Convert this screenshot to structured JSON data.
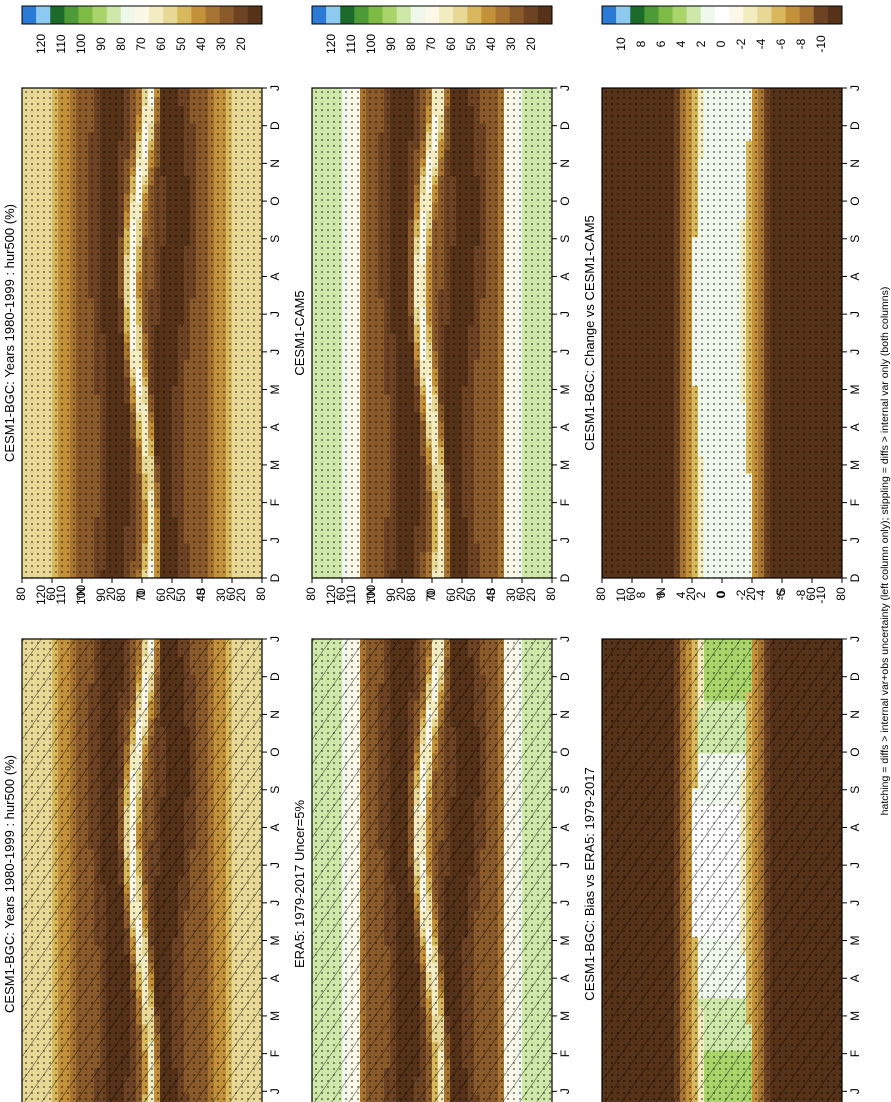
{
  "colors": {
    "humidity_levels": [
      "#2b7bd6",
      "#8ec9f0",
      "#1d6b2a",
      "#4d9a36",
      "#7ebb45",
      "#a8d46a",
      "#cde8a8",
      "#f0f8ec",
      "#fbf8e8",
      "#f3ecc0",
      "#e8d896",
      "#d8b85c",
      "#c2913a",
      "#a87432",
      "#8a5a2a",
      "#6d4324",
      "#553218"
    ],
    "change_levels": [
      "#2b7bd6",
      "#8ec9f0",
      "#1d6b2a",
      "#4d9a36",
      "#7ebb45",
      "#a8d46a",
      "#cde8a8",
      "#f0f8ec",
      "#ffffff",
      "#fbf8e8",
      "#f3ecc0",
      "#e8d896",
      "#d8b85c",
      "#c2913a",
      "#a87432",
      "#6d4324",
      "#553218"
    ]
  },
  "footer_note": "hatching = diffs > internal var+obs uncertainty (left column only); stippling = diffs > internal var only (both columns)",
  "panels": [
    {
      "id": "p1",
      "title": "CESM1-BGC: Years 1980-1999 : hur500 (%)",
      "kind": "humidity",
      "hatch": true
    },
    {
      "id": "p2",
      "title": "CESM1-BGC: Years 1980-1999 : hur500 (%)",
      "kind": "humidity",
      "hatch": false
    },
    {
      "id": "p3",
      "title": "ERA5: 1979-2017 Uncer=5%",
      "kind": "humidity_obs",
      "hatch": true
    },
    {
      "id": "p4",
      "title": "CESM1-CAM5",
      "kind": "humidity_obs",
      "hatch": false
    },
    {
      "id": "p5",
      "title": "CESM1-BGC: Bias vs ERA5: 1979-2017",
      "kind": "change",
      "hatch": true
    },
    {
      "id": "p6",
      "title": "CESM1-BGC: Change vs CESM1-CAM5",
      "kind": "change",
      "hatch": false
    }
  ],
  "chart_data": [
    {
      "type": "heatmap",
      "title": "CESM1-BGC: Years 1980-1999 : hur500 (%)",
      "x": [
        "D",
        "J",
        "F",
        "M",
        "A",
        "M",
        "J",
        "J",
        "A",
        "S",
        "O",
        "N",
        "D",
        "J"
      ],
      "y_ticks": [
        "80",
        "60",
        "°N",
        "20",
        "0",
        "20",
        "°S",
        "60",
        "80"
      ],
      "colorbar_labels": [
        "120",
        "110",
        "100",
        "90",
        "80",
        "70",
        "60",
        "50",
        "40",
        "30",
        "20"
      ],
      "ylim": [
        -90,
        90
      ]
    },
    {
      "type": "heatmap",
      "title": "CESM1-BGC: Years 1980-1999 : hur500 (%)",
      "x": [
        "D",
        "J",
        "F",
        "M",
        "A",
        "M",
        "J",
        "J",
        "A",
        "S",
        "O",
        "N",
        "D",
        "J"
      ],
      "y_ticks": [
        "80",
        "60",
        "°N",
        "20",
        "0",
        "20",
        "°S",
        "60",
        "80"
      ],
      "colorbar_labels": [
        "120",
        "110",
        "100",
        "90",
        "80",
        "70",
        "60",
        "50",
        "40",
        "30",
        "20"
      ],
      "ylim": [
        -90,
        90
      ]
    },
    {
      "type": "heatmap",
      "title": "ERA5: 1979-2017 Uncer=5%",
      "x": [
        "D",
        "J",
        "F",
        "M",
        "A",
        "M",
        "J",
        "J",
        "A",
        "S",
        "O",
        "N",
        "D",
        "J"
      ],
      "y_ticks": [
        "80",
        "60",
        "°N",
        "20",
        "0",
        "20",
        "°S",
        "60",
        "80"
      ],
      "colorbar_labels": [
        "120",
        "110",
        "100",
        "90",
        "80",
        "70",
        "60",
        "50",
        "40",
        "30",
        "20"
      ],
      "ylim": [
        -90,
        90
      ]
    },
    {
      "type": "heatmap",
      "title": "CESM1-CAM5",
      "x": [
        "D",
        "J",
        "F",
        "M",
        "A",
        "M",
        "J",
        "J",
        "A",
        "S",
        "O",
        "N",
        "D",
        "J"
      ],
      "y_ticks": [
        "80",
        "60",
        "°N",
        "20",
        "0",
        "20",
        "°S",
        "60",
        "80"
      ],
      "colorbar_labels": [
        "120",
        "110",
        "100",
        "90",
        "80",
        "70",
        "60",
        "50",
        "40",
        "30",
        "20"
      ],
      "ylim": [
        -90,
        90
      ]
    },
    {
      "type": "heatmap",
      "title": "CESM1-BGC: Bias vs ERA5: 1979-2017",
      "x": [
        "D",
        "J",
        "F",
        "M",
        "A",
        "M",
        "J",
        "J",
        "A",
        "S",
        "O",
        "N",
        "D",
        "J"
      ],
      "y_ticks": [
        "80",
        "60",
        "°N",
        "20",
        "0",
        "20",
        "°S",
        "60",
        "80"
      ],
      "colorbar_labels": [
        "10",
        "8",
        "6",
        "4",
        "2",
        "0",
        "-2",
        "-4",
        "-6",
        "-8",
        "-10"
      ],
      "ylim": [
        -90,
        90
      ]
    },
    {
      "type": "heatmap",
      "title": "CESM1-BGC: Change vs CESM1-CAM5",
      "x": [
        "D",
        "J",
        "F",
        "M",
        "A",
        "M",
        "J",
        "J",
        "A",
        "S",
        "O",
        "N",
        "D",
        "J"
      ],
      "y_ticks": [
        "80",
        "60",
        "°N",
        "20",
        "0",
        "20",
        "°S",
        "60",
        "80"
      ],
      "colorbar_labels": [
        "10",
        "8",
        "6",
        "4",
        "2",
        "0",
        "-2",
        "-4",
        "-6",
        "-8",
        "-10"
      ],
      "ylim": [
        -90,
        90
      ]
    }
  ]
}
